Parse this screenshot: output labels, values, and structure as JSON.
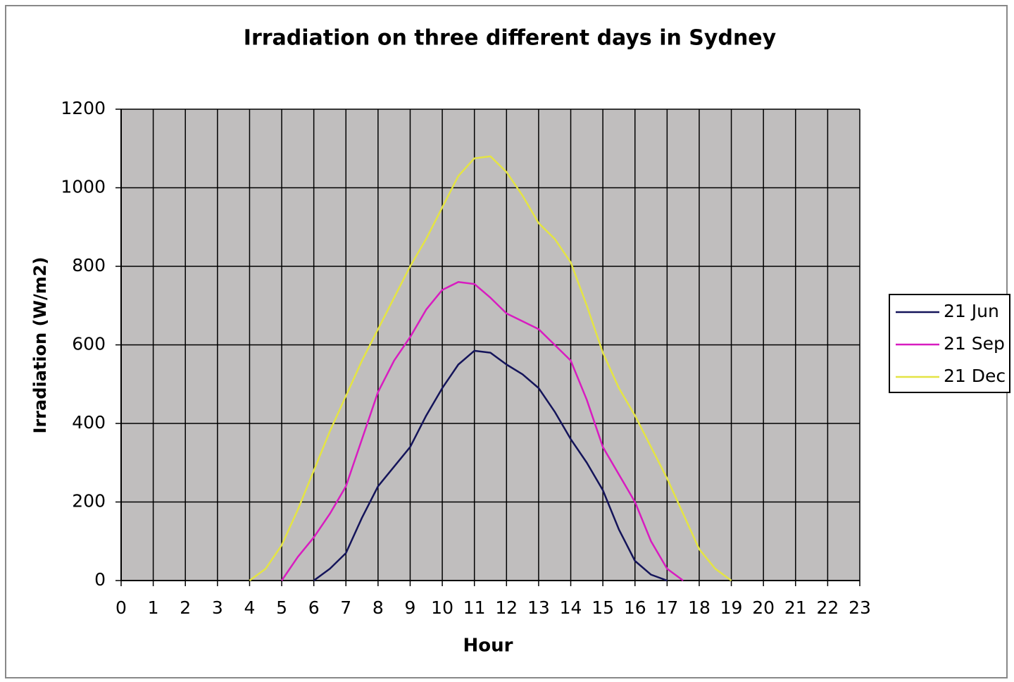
{
  "chart_data": {
    "type": "line",
    "title": "Irradiation on three different days in Sydney",
    "xlabel": "Hour",
    "ylabel": "Irradiation (W/m2)",
    "x": [
      4,
      4.5,
      5,
      5.5,
      6,
      6.5,
      7,
      7.5,
      8,
      8.5,
      9,
      9.5,
      10,
      10.5,
      11,
      11.5,
      12,
      12.5,
      13,
      13.5,
      14,
      14.5,
      15,
      15.5,
      16,
      16.5,
      17,
      17.5,
      18,
      18.5,
      19
    ],
    "series": [
      {
        "name": "21 Jun",
        "color": "#14145a",
        "values": [
          null,
          null,
          null,
          null,
          0,
          30,
          70,
          160,
          240,
          290,
          340,
          420,
          490,
          550,
          585,
          580,
          550,
          525,
          490,
          430,
          360,
          300,
          230,
          130,
          50,
          15,
          0,
          null,
          null,
          null,
          null
        ]
      },
      {
        "name": "21 Sep",
        "color": "#d81cc0",
        "values": [
          null,
          null,
          0,
          60,
          110,
          170,
          240,
          360,
          480,
          560,
          620,
          690,
          740,
          760,
          755,
          720,
          680,
          660,
          640,
          600,
          560,
          460,
          340,
          270,
          200,
          100,
          30,
          0,
          null,
          null,
          null
        ]
      },
      {
        "name": "21 Dec",
        "color": "#e4e444",
        "values": [
          0,
          30,
          90,
          180,
          280,
          380,
          470,
          560,
          640,
          720,
          800,
          870,
          950,
          1030,
          1075,
          1080,
          1040,
          980,
          910,
          870,
          810,
          700,
          580,
          490,
          420,
          340,
          260,
          170,
          80,
          30,
          0
        ]
      }
    ],
    "xlim": [
      0,
      23
    ],
    "xticks": [
      0,
      1,
      2,
      3,
      4,
      5,
      6,
      7,
      8,
      9,
      10,
      11,
      12,
      13,
      14,
      15,
      16,
      17,
      18,
      19,
      20,
      21,
      22,
      23
    ],
    "ylim": [
      0,
      1200
    ],
    "yticks": [
      0,
      200,
      400,
      600,
      800,
      1000,
      1200
    ],
    "grid": true,
    "legend": "right"
  }
}
